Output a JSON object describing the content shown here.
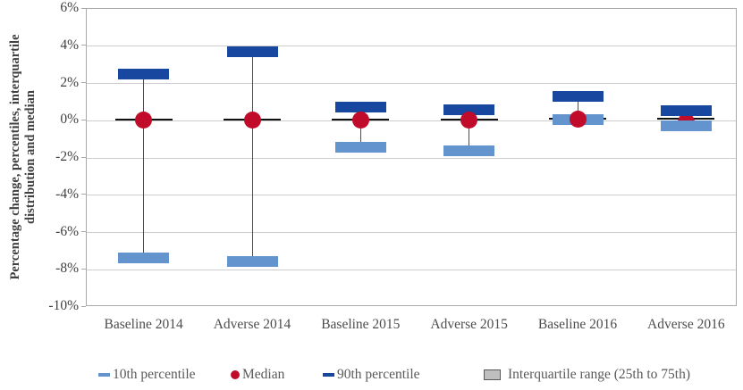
{
  "chart_data": {
    "type": "box-percentile-whisker",
    "title": "",
    "ylabel": "Percentage change, percentiles, interquartile distribution and median",
    "ylabel_lines": [
      "Percentage change, percentiles, interquartile",
      "distribution and median"
    ],
    "xlabel": "",
    "ylim": [
      -10,
      6
    ],
    "ytick_step": 2,
    "yticks": [
      6,
      4,
      2,
      0,
      -2,
      -4,
      -6,
      -8,
      -10
    ],
    "ytick_labels": [
      "6%",
      "4%",
      "2%",
      "0%",
      "-2%",
      "-4%",
      "-6%",
      "-8%",
      "-10%"
    ],
    "grid": true,
    "legend_position": "bottom",
    "categories": [
      "Baseline 2014",
      "Adverse 2014",
      "Baseline 2015",
      "Adverse 2015",
      "Baseline 2016",
      "Adverse 2016"
    ],
    "series": [
      {
        "name": "90th percentile",
        "values": [
          2.45,
          3.65,
          0.7,
          0.55,
          1.25,
          0.5
        ]
      },
      {
        "name": "Median",
        "values": [
          0.0,
          0.0,
          0.0,
          0.0,
          0.05,
          -0.1
        ]
      },
      {
        "name": "10th percentile",
        "values": [
          -7.4,
          -7.6,
          -1.45,
          -1.65,
          0.0,
          -0.3
        ]
      },
      {
        "name": "Interquartile range 75th",
        "values": [
          0.05,
          0.05,
          0.05,
          0.05,
          0.1,
          0.1
        ]
      },
      {
        "name": "Interquartile range 25th",
        "values": [
          -0.05,
          -0.05,
          -0.05,
          -0.05,
          0.0,
          0.0
        ]
      }
    ],
    "median_dot_behind_bars": [
      false,
      false,
      false,
      false,
      false,
      true
    ]
  },
  "legend": {
    "items": [
      {
        "label": "10th percentile",
        "marker": "dash",
        "color_key": "light_blue"
      },
      {
        "label": "Median",
        "marker": "dot",
        "color_key": "red"
      },
      {
        "label": "90th percentile",
        "marker": "dash",
        "color_key": "dark_blue"
      },
      {
        "label": "Interquartile range (25th to 75th)",
        "marker": "box",
        "color_key": "legend_box_fill"
      }
    ]
  },
  "colors": {
    "dark_blue": "#17479E",
    "light_blue": "#6394CE",
    "red": "#C00B2B",
    "iqr_line": "#111111",
    "whisker": "#4D4D4D",
    "gridline": "#CDCDCD",
    "plot_border": "#A9A9A9",
    "axis_text": "#404040",
    "category_text": "#4D4D4D",
    "legend_text": "#595959",
    "legend_box_fill": "#BFBFBF",
    "legend_box_border": "#595959",
    "background": "#FFFFFF"
  }
}
